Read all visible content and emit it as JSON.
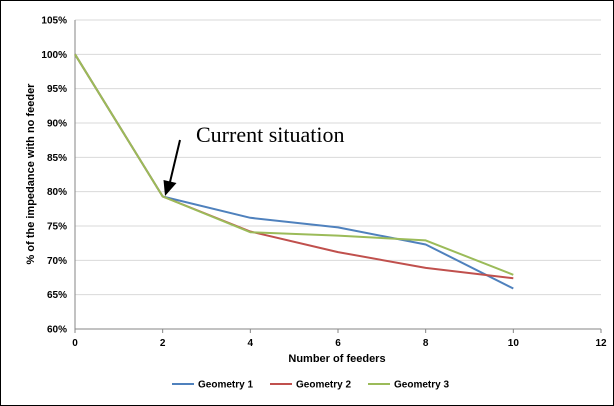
{
  "chart_data": {
    "type": "line",
    "title": "",
    "xlabel": "Number of feeders",
    "ylabel": "% of the impedance with no feeder",
    "xlim": [
      0,
      12
    ],
    "ylim": [
      60,
      105
    ],
    "x_ticks": [
      "0",
      "2",
      "4",
      "6",
      "8",
      "10",
      "12"
    ],
    "y_ticks": [
      "60%",
      "65%",
      "70%",
      "75%",
      "80%",
      "85%",
      "90%",
      "95%",
      "100%",
      "105%"
    ],
    "grid": "horizontal",
    "legend_position": "bottom",
    "series": [
      {
        "name": "Geometry 1",
        "color": "#4f81bd",
        "x": [
          0,
          2,
          4,
          6,
          8,
          10
        ],
        "y": [
          100,
          79.3,
          76.2,
          74.8,
          72.3,
          65.9
        ]
      },
      {
        "name": "Geometry 2",
        "color": "#c0504d",
        "x": [
          0,
          2,
          4,
          6,
          8,
          10
        ],
        "y": [
          100,
          79.3,
          74.2,
          71.2,
          68.9,
          67.4
        ]
      },
      {
        "name": "Geometry 3",
        "color": "#9bbb59",
        "x": [
          0,
          2,
          4,
          6,
          8,
          10
        ],
        "y": [
          100,
          79.3,
          74.1,
          73.6,
          72.9,
          67.9
        ]
      }
    ],
    "annotation": {
      "text": "Current situation",
      "x": 2,
      "y": 79.3
    }
  }
}
